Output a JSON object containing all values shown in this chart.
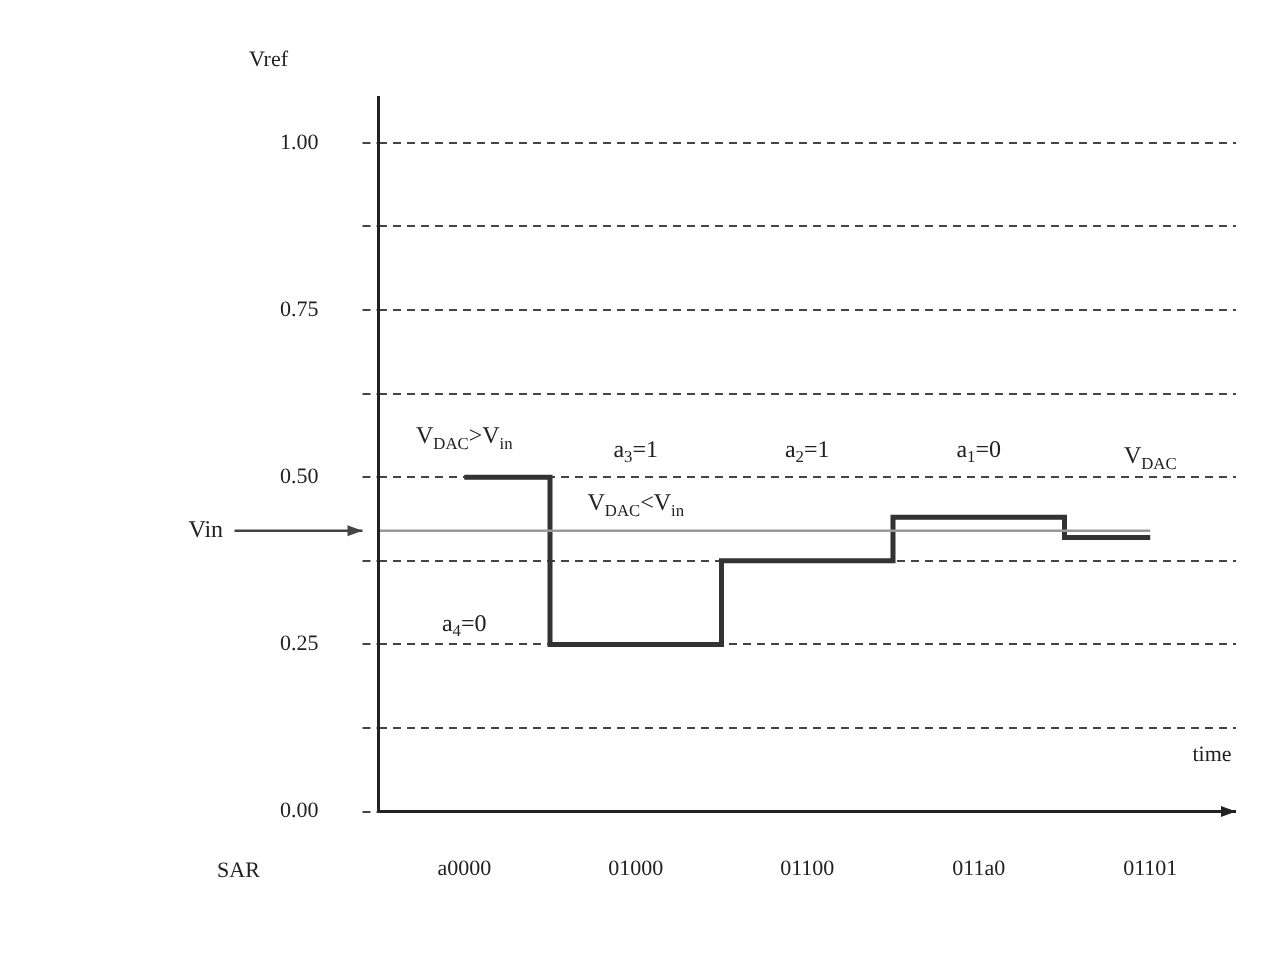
{
  "chart_data": {
    "type": "step",
    "categories": [
      "a0000",
      "01000",
      "01100",
      "011a0",
      "01101"
    ],
    "series": [
      {
        "color": "#333333",
        "values": [
          0.5,
          0.25,
          0.375,
          0.44,
          0.41
        ]
      }
    ],
    "ylim": [
      0,
      1.07
    ],
    "yticks": [
      {
        "value": 0,
        "label": "0.00"
      },
      {
        "value": 0.125,
        "label": null
      },
      0.25,
      {
        "value": 0.375,
        "label": null
      },
      {
        "value": 0.5,
        "label": "0.50"
      },
      {
        "value": 0.625,
        "label": null
      },
      0.75,
      {
        "value": 0.875,
        "label": null
      },
      {
        "value": 1.0,
        "label": "1.00"
      }
    ],
    "ylabel": "Vref",
    "xlabel": "time",
    "grid": "y",
    "line_style": "solid",
    "marker": "none",
    "legend": false,
    "ref_lines": [
      {
        "axis": "y",
        "value": 0.42,
        "label": "Vin",
        "color": "#999999"
      }
    ],
    "annotations": [
      "SAR",
      "V$_{DAC}$>V$_{in}$",
      {
        "text": "a$_{4}$=0",
        "x": "a0000",
        "y": 0.28
      },
      "V$_{DAC}$<V$_{in}$",
      {
        "text": "a$_{3}$=1",
        "x": "01000",
        "y": 0.54
      },
      {
        "text": "a$_{2}$=1",
        "x": "01100",
        "y": 0.54
      },
      {
        "text": "a$_{1}$=0",
        "x": "011a0",
        "y": 0.54
      },
      {
        "text": "V$_{DAC}$",
        "x": "01101",
        "y": 0.53
      }
    ]
  }
}
